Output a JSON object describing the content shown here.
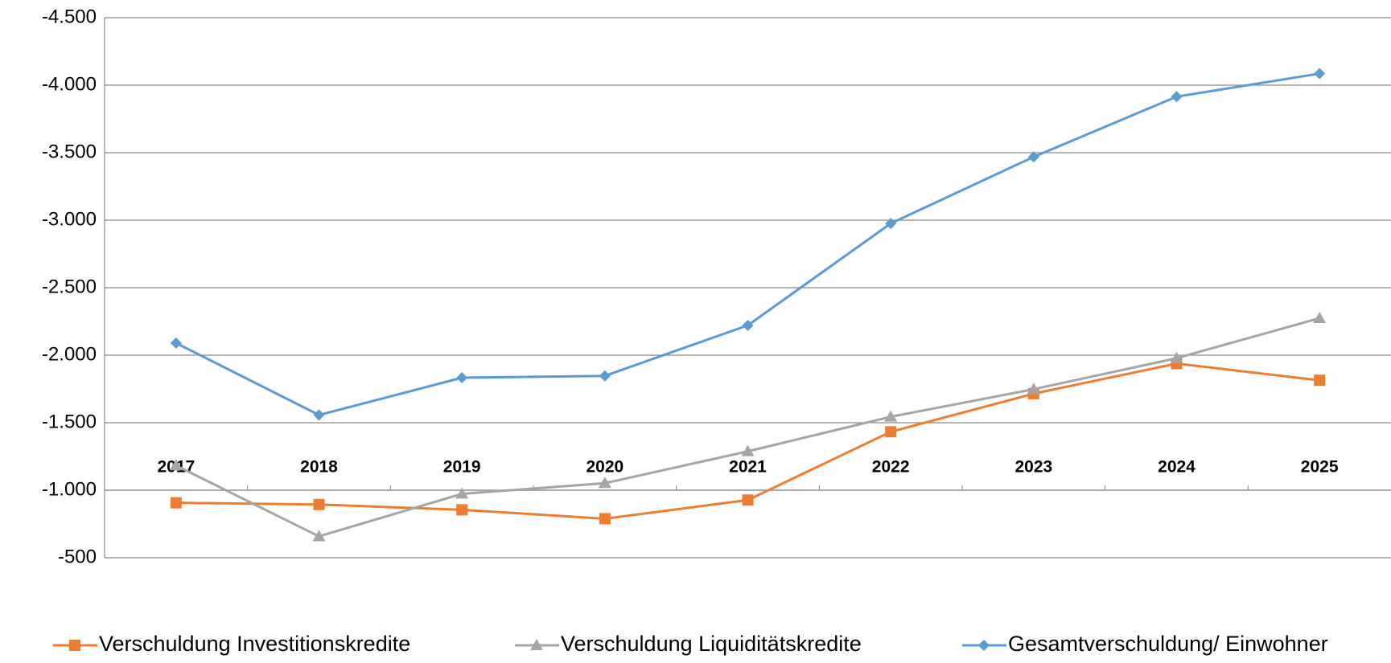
{
  "chart_data": {
    "type": "line",
    "categories": [
      "2017",
      "2018",
      "2019",
      "2020",
      "2021",
      "2022",
      "2023",
      "2024",
      "2025"
    ],
    "series": [
      {
        "name": "Verschuldung Investitionskredite",
        "color": "#ed7d31",
        "marker": "square",
        "values": [
          -907,
          -894,
          -855,
          -789,
          -927,
          -1433,
          -1715,
          -1938,
          -1814
        ]
      },
      {
        "name": "Verschuldung Liquiditätskredite",
        "color": "#a5a5a5",
        "marker": "triangle",
        "values": [
          -1183,
          -658,
          -973,
          -1052,
          -1288,
          -1544,
          -1748,
          -1978,
          -2274
        ]
      },
      {
        "name": "Gesamtverschuldung/ Einwohner",
        "color": "#5b9bd5",
        "marker": "diamond",
        "values": [
          -2090,
          -1557,
          -1833,
          -1847,
          -2221,
          -2976,
          -3469,
          -3915,
          -4086
        ]
      }
    ],
    "ylim": [
      -4500,
      -500
    ],
    "y_reversed": true,
    "x_axis_crosses": -1000,
    "yticks": [
      {
        "value": -4500,
        "label": "-4.500"
      },
      {
        "value": -4000,
        "label": "-4.000"
      },
      {
        "value": -3500,
        "label": "-3.500"
      },
      {
        "value": -3000,
        "label": "-3.000"
      },
      {
        "value": -2500,
        "label": "-2.500"
      },
      {
        "value": -2000,
        "label": "-2.000"
      },
      {
        "value": -1500,
        "label": "-1.500"
      },
      {
        "value": -1000,
        "label": "-1.000"
      },
      -500
    ],
    "grid": true,
    "legend": "bottom"
  }
}
